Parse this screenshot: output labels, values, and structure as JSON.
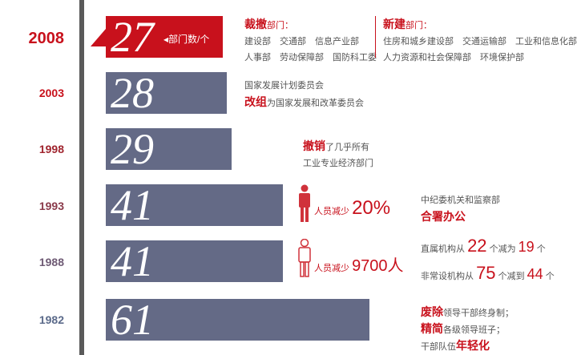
{
  "chart_data": {
    "type": "bar",
    "categories": [
      "2008",
      "2003",
      "1998",
      "1993",
      "1988",
      "1982"
    ],
    "values": [
      27,
      28,
      29,
      41,
      41,
      61
    ],
    "unit_label": "部门数/个",
    "highlight": "2008",
    "colors": {
      "bar": "#646a86",
      "highlight": "#c8111c"
    }
  },
  "annotations": {
    "y2008": {
      "cut_title": "裁撤",
      "cut_suffix": "部门：",
      "cut_line1": "建设部　交通部　信息产业部",
      "cut_line2": "人事部　劳动保障部　国防科工委",
      "new_title": "新建",
      "new_suffix": "部门：",
      "new_line1": "住房和城乡建设部　交通运输部　工业和信息化部",
      "new_line2": "人力资源和社会保障部　环境保护部"
    },
    "y2003": {
      "line1": "国家发展计划委员会",
      "emph": "改组",
      "line2": "为国家发展和改革委员会"
    },
    "y1998": {
      "emph": "撤销",
      "line1": "了几乎所有",
      "line2": "工业专业经济部门"
    },
    "y1993": {
      "staff_label": "人员减少",
      "staff_value": "20%",
      "line1": "中纪委机关和监察部",
      "emph": "合署办公"
    },
    "y1988": {
      "staff_label": "人员减少",
      "staff_value": "9700人",
      "r1_a": "直属机构从",
      "r1_n1": "22",
      "r1_b": "个减为",
      "r1_n2": "19",
      "r1_c": "个",
      "r2_a": "非常设机构从",
      "r2_n1": "75",
      "r2_b": "个减到",
      "r2_n2": "44",
      "r2_c": "个"
    },
    "y1982": {
      "emph1": "废除",
      "line1": "领导干部终身制；",
      "emph2": "精简",
      "line2": "各级领导班子；",
      "line3": "干部队伍",
      "emph3": "年轻化"
    }
  },
  "icons": [
    "person-icon"
  ]
}
